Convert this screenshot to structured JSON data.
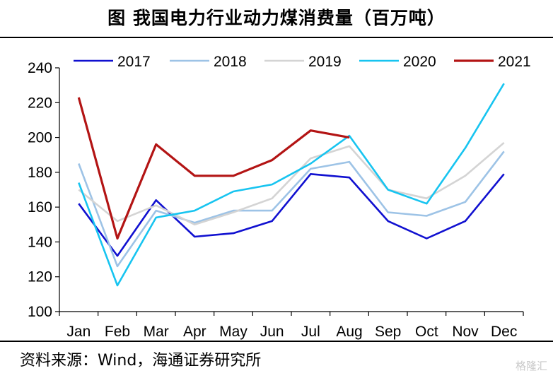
{
  "title": "图  我国电力行业动力煤消费量（百万吨）",
  "source": "资料来源：Wind，海通证券研究所",
  "watermark": "格隆汇",
  "chart_data": {
    "type": "line",
    "title": "图  我国电力行业动力煤消费量（百万吨）",
    "xlabel": "",
    "ylabel": "",
    "categories": [
      "Jan",
      "Feb",
      "Mar",
      "Apr",
      "May",
      "Jun",
      "Jul",
      "Aug",
      "Sep",
      "Oct",
      "Nov",
      "Dec"
    ],
    "ylim": [
      100,
      240
    ],
    "yticks": [
      "100",
      "120",
      "140",
      "160",
      "180",
      "200",
      "220",
      "240"
    ],
    "grid": false,
    "legend": "top",
    "series": [
      {
        "name": "2017",
        "color": "#1010d0",
        "values": [
          162,
          132,
          164,
          143,
          145,
          152,
          179,
          177,
          152,
          142,
          152,
          179
        ]
      },
      {
        "name": "2018",
        "color": "#9dc3e6",
        "values": [
          185,
          126,
          158,
          151,
          158,
          158,
          182,
          186,
          157,
          155,
          163,
          192
        ]
      },
      {
        "name": "2019",
        "color": "#d4d4d4",
        "values": [
          170,
          152,
          161,
          150,
          157,
          165,
          188,
          195,
          170,
          165,
          178,
          197
        ]
      },
      {
        "name": "2020",
        "color": "#17c4f0",
        "values": [
          174,
          115,
          154,
          158,
          169,
          173,
          185,
          201,
          170,
          162,
          194,
          231
        ]
      },
      {
        "name": "2021",
        "color": "#b31414",
        "values": [
          223,
          142,
          196,
          178,
          178,
          187,
          204,
          200,
          null,
          null,
          null,
          null
        ]
      }
    ]
  }
}
